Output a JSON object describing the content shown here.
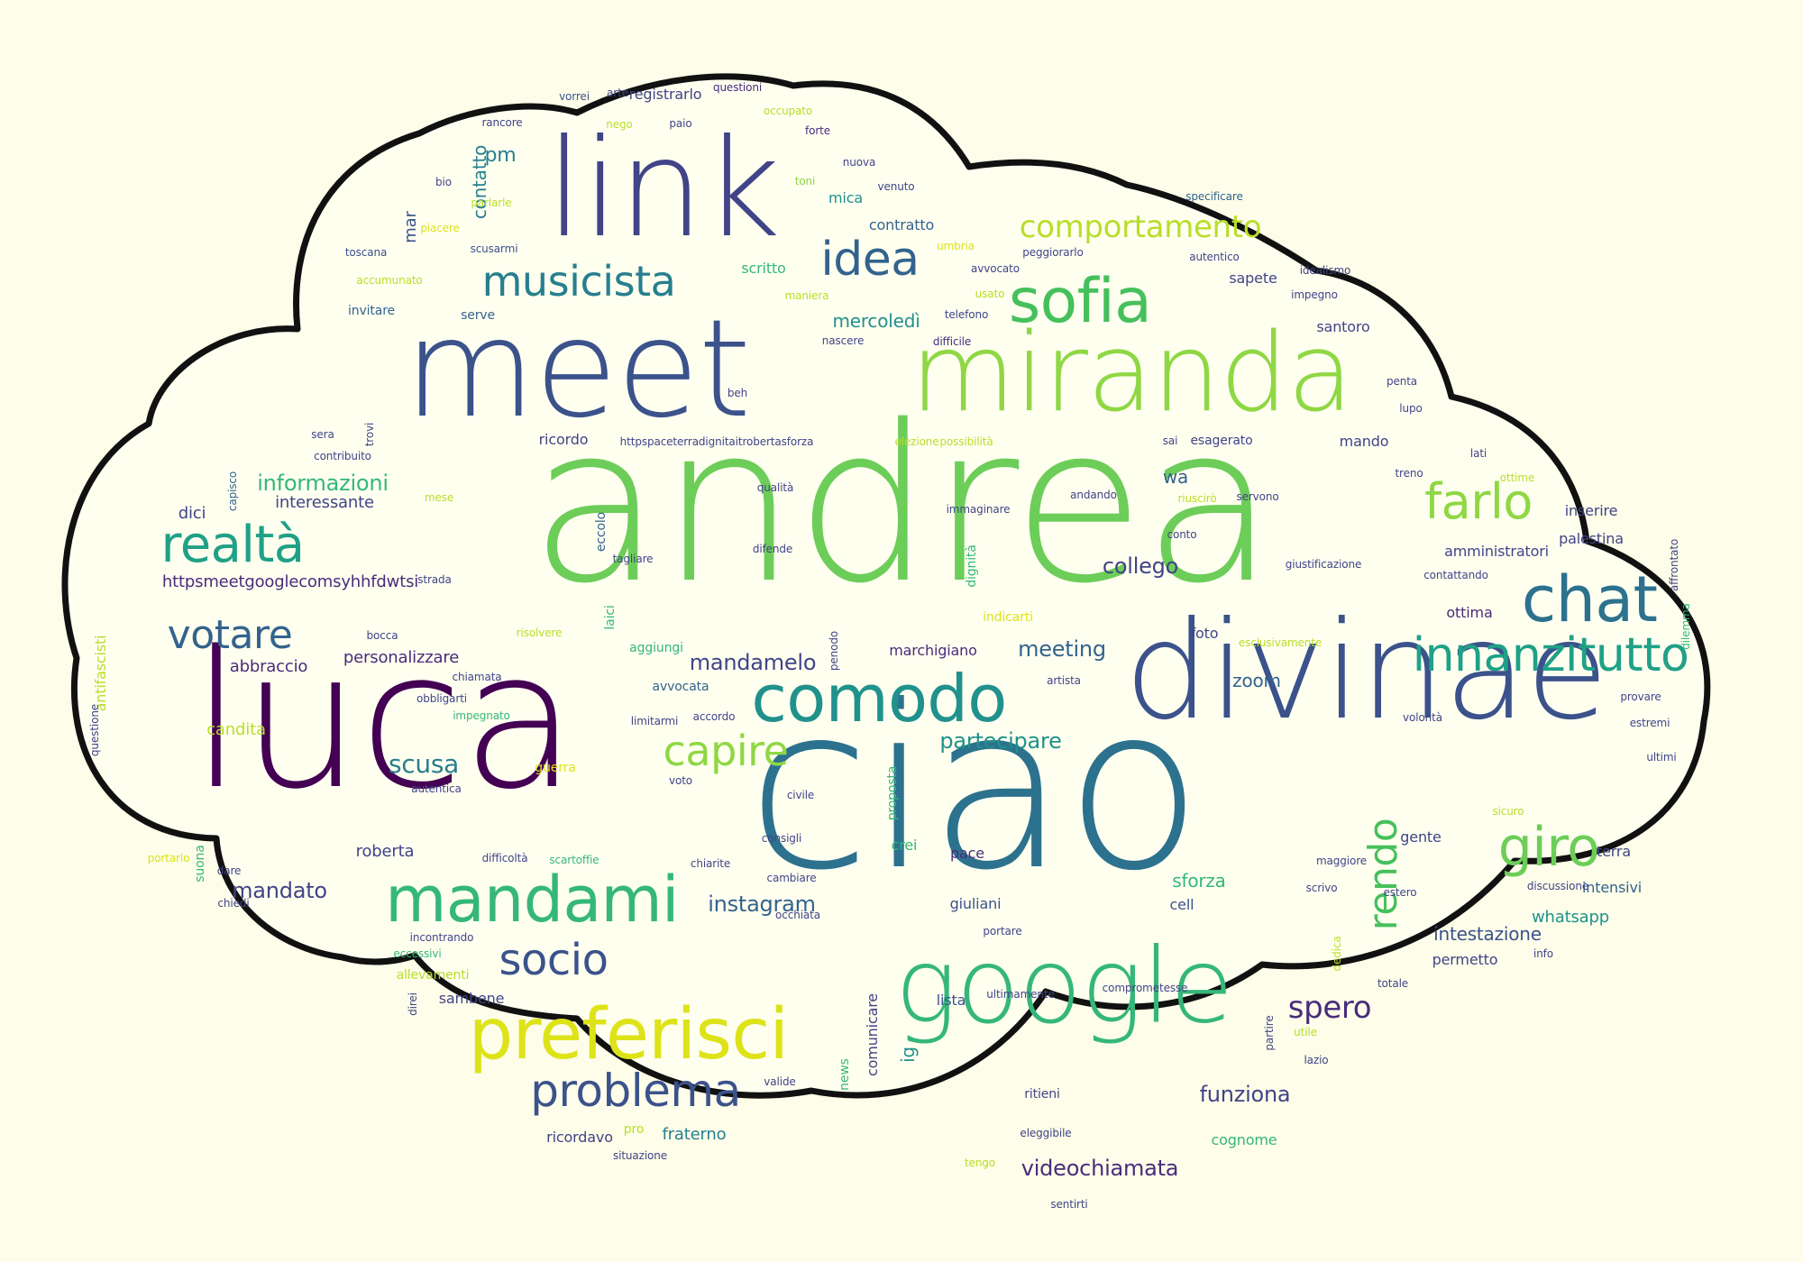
{
  "palette": {
    "background": "#fdfde9",
    "cloud_fill": "#fffff0",
    "cloud_outline": "#111111",
    "colors": [
      "#46c05c",
      "#6dcd59",
      "#8fd744",
      "#b8de29",
      "#dde318",
      "#fde725",
      "#35b779",
      "#1fa187",
      "#21918c",
      "#277f8e",
      "#2c728e",
      "#33638d",
      "#3b528b",
      "#414487",
      "#472d7b",
      "#440154"
    ]
  },
  "words": [
    {
      "text": "andrea",
      "color": "#6dcd59"
    },
    {
      "text": "ciao",
      "color": "#2c728e"
    },
    {
      "text": "luca",
      "color": "#440154"
    },
    {
      "text": "divinae",
      "color": "#3b528b"
    },
    {
      "text": "meet",
      "color": "#3b528b"
    },
    {
      "text": "link",
      "color": "#414487"
    },
    {
      "text": "miranda",
      "color": "#8fd744"
    },
    {
      "text": "google",
      "color": "#35b779"
    },
    {
      "text": "comodo",
      "color": "#21918c"
    },
    {
      "text": "preferisci",
      "color": "#dde318"
    },
    {
      "text": "mandami",
      "color": "#35b779"
    },
    {
      "text": "sofia",
      "color": "#46c05c"
    },
    {
      "text": "chat",
      "color": "#2c728e"
    },
    {
      "text": "innanzitutto",
      "color": "#1fa187"
    },
    {
      "text": "musicista",
      "color": "#277f8e"
    },
    {
      "text": "problema",
      "color": "#3b528b"
    },
    {
      "text": "farlo",
      "color": "#8fd744"
    },
    {
      "text": "realtà",
      "color": "#1fa187"
    },
    {
      "text": "giro",
      "color": "#6dcd59"
    },
    {
      "text": "socio",
      "color": "#3b528b"
    },
    {
      "text": "idea",
      "color": "#33638d"
    },
    {
      "text": "votare",
      "color": "#33638d"
    },
    {
      "text": "capire",
      "color": "#8fd744"
    },
    {
      "text": "rendo",
      "color": "#46c05c"
    },
    {
      "text": "comportamento",
      "color": "#b8de29"
    },
    {
      "text": "spero",
      "color": "#472d7b"
    },
    {
      "text": "scusa",
      "color": "#277f8e"
    },
    {
      "text": "partecipare",
      "color": "#21918c"
    },
    {
      "text": "meeting",
      "color": "#33638d"
    },
    {
      "text": "instagram",
      "color": "#33638d"
    },
    {
      "text": "mandamelo",
      "color": "#414487"
    },
    {
      "text": "funziona",
      "color": "#414487"
    },
    {
      "text": "videochiamata",
      "color": "#472d7b"
    },
    {
      "text": "mandato",
      "color": "#414487"
    },
    {
      "text": "informazioni",
      "color": "#35b779"
    },
    {
      "text": "collego",
      "color": "#414487"
    },
    {
      "text": "mercoledì",
      "color": "#21918c"
    },
    {
      "text": "zoom",
      "color": "#33638d"
    },
    {
      "text": "wa",
      "color": "#33638d"
    },
    {
      "text": "intestazione",
      "color": "#3b528b"
    },
    {
      "text": "whatsapp",
      "color": "#21918c"
    },
    {
      "text": "sforza",
      "color": "#35b779"
    },
    {
      "text": "personalizzare",
      "color": "#472d7b"
    },
    {
      "text": "https://meet.google.com/syh-hfdw-tsi",
      "display": "httpsmeetgooglecomsyhhfdwtsi",
      "color": "#472d7b"
    },
    {
      "text": "abbraccio",
      "color": "#472d7b"
    },
    {
      "text": "ricordavo",
      "color": "#414487"
    },
    {
      "text": "fraterno",
      "color": "#277f8e"
    },
    {
      "text": "interessante",
      "color": "#414487"
    },
    {
      "text": "dici",
      "color": "#414487"
    },
    {
      "text": "candita",
      "color": "#b8de29"
    },
    {
      "text": "roberta",
      "color": "#414487"
    },
    {
      "text": "pm",
      "color": "#277f8e"
    },
    {
      "text": "contatto",
      "color": "#277f8e"
    },
    {
      "text": "mar",
      "color": "#3b528b"
    },
    {
      "text": "registrarlo",
      "color": "#414487"
    },
    {
      "text": "ricordo",
      "color": "#414487"
    },
    {
      "text": "inserire",
      "color": "#414487"
    },
    {
      "text": "palestina",
      "color": "#414487"
    },
    {
      "text": "amministratori",
      "color": "#414487"
    },
    {
      "text": "ottima",
      "color": "#472d7b"
    },
    {
      "text": "gente",
      "color": "#414487"
    },
    {
      "text": "terra",
      "color": "#414487"
    },
    {
      "text": "intensivi",
      "color": "#33638d"
    },
    {
      "text": "permetto",
      "color": "#414487"
    },
    {
      "text": "cognome",
      "color": "#35b779"
    },
    {
      "text": "foto",
      "color": "#414487"
    },
    {
      "text": "pace",
      "color": "#472d7b"
    },
    {
      "text": "crei",
      "color": "#35b779"
    },
    {
      "text": "giuliani",
      "color": "#3b528b"
    },
    {
      "text": "lista",
      "color": "#3b528b"
    },
    {
      "text": "cell",
      "color": "#3b528b"
    },
    {
      "text": "socio",
      "color": "#3b528b"
    },
    {
      "text": "sambene",
      "color": "#414487"
    },
    {
      "text": "allevamenti",
      "color": "#b8de29"
    },
    {
      "text": "ig",
      "color": "#21918c"
    },
    {
      "text": "santoro",
      "color": "#414487"
    },
    {
      "text": "sapete",
      "color": "#414487"
    },
    {
      "text": "mando",
      "color": "#414487"
    },
    {
      "text": "marchigiano",
      "color": "#472d7b"
    },
    {
      "text": "aggiungi",
      "color": "#35b779"
    },
    {
      "text": "avvocata",
      "color": "#33638d"
    },
    {
      "text": "indicarti",
      "color": "#dde318"
    },
    {
      "text": "esagerato",
      "color": "#414487"
    },
    {
      "text": "sai",
      "color": "#414487"
    },
    {
      "text": "contratto",
      "color": "#33638d"
    },
    {
      "text": "scritto",
      "color": "#35b779"
    },
    {
      "text": "serve",
      "color": "#33638d"
    },
    {
      "text": "invitare",
      "color": "#33638d"
    },
    {
      "text": "mica",
      "color": "#21918c"
    },
    {
      "text": "questioni",
      "color": "#472d7b"
    },
    {
      "text": "arte",
      "color": "#414487"
    },
    {
      "text": "vorrei",
      "color": "#3b528b"
    },
    {
      "text": "suona",
      "color": "#35b779"
    },
    {
      "text": "scusarmi",
      "color": "#3b528b"
    },
    {
      "text": "toscana",
      "color": "#3b528b"
    },
    {
      "text": "accumunato",
      "color": "#b8de29"
    },
    {
      "text": "piacere",
      "color": "#dde318"
    },
    {
      "text": "bio",
      "color": "#414487"
    },
    {
      "text": "rancore",
      "color": "#414487"
    },
    {
      "text": "nego",
      "color": "#b8de29"
    },
    {
      "text": "paio",
      "color": "#414487"
    },
    {
      "text": "occupato",
      "color": "#b8de29"
    },
    {
      "text": "forte",
      "color": "#472d7b"
    },
    {
      "text": "nuova",
      "color": "#414487"
    },
    {
      "text": "toni",
      "color": "#8fd744"
    },
    {
      "text": "venuto",
      "color": "#414487"
    },
    {
      "text": "specificare",
      "color": "#33638d"
    },
    {
      "text": "autentico",
      "color": "#414487"
    },
    {
      "text": "idealismo",
      "color": "#414487"
    },
    {
      "text": "impegno",
      "color": "#414487"
    },
    {
      "text": "peggiorarlo",
      "color": "#414487"
    },
    {
      "text": "avvocato",
      "color": "#414487"
    },
    {
      "text": "umbria",
      "color": "#dde318"
    },
    {
      "text": "usato",
      "color": "#b8de29"
    },
    {
      "text": "maniera",
      "color": "#b8de29"
    },
    {
      "text": "telefono",
      "color": "#414487"
    },
    {
      "text": "difficile",
      "color": "#472d7b"
    },
    {
      "text": "nascere",
      "color": "#414487"
    },
    {
      "text": "beh",
      "color": "#414487"
    },
    {
      "text": "elezione",
      "color": "#b8de29"
    },
    {
      "text": "possibilità",
      "color": "#b8de29"
    },
    {
      "text": "https://paceterradignita.it/robertasforza",
      "display": "httpspaceterradignitaitrobertasforza",
      "color": "#414487"
    },
    {
      "text": "sera",
      "color": "#414487"
    },
    {
      "text": "trovi",
      "color": "#414487"
    },
    {
      "text": "contribuito",
      "color": "#414487"
    },
    {
      "text": "capisco",
      "color": "#33638d"
    },
    {
      "text": "mese",
      "color": "#b8de29"
    },
    {
      "text": "qualità",
      "color": "#414487"
    },
    {
      "text": "immaginare",
      "color": "#414487"
    },
    {
      "text": "andando",
      "color": "#414487"
    },
    {
      "text": "riuscirò",
      "color": "#b8de29"
    },
    {
      "text": "servono",
      "color": "#414487"
    },
    {
      "text": "conto",
      "color": "#414487"
    },
    {
      "text": "difende",
      "color": "#414487"
    },
    {
      "text": "tagliare",
      "color": "#414487"
    },
    {
      "text": "eccolo",
      "color": "#33638d"
    },
    {
      "text": "dignità",
      "color": "#35b779"
    },
    {
      "text": "strada",
      "color": "#414487"
    },
    {
      "text": "laici",
      "color": "#35b779"
    },
    {
      "text": "giustificazione",
      "color": "#414487"
    },
    {
      "text": "contattando",
      "color": "#414487"
    },
    {
      "text": "affrontato",
      "color": "#414487"
    },
    {
      "text": "dilemma",
      "color": "#35b779"
    },
    {
      "text": "penta",
      "color": "#414487"
    },
    {
      "text": "lupo",
      "color": "#414487"
    },
    {
      "text": "lati",
      "color": "#414487"
    },
    {
      "text": "treno",
      "color": "#414487"
    },
    {
      "text": "ottime",
      "color": "#b8de29"
    },
    {
      "text": "bocca",
      "color": "#414487"
    },
    {
      "text": "risolvere",
      "color": "#b8de29"
    },
    {
      "text": "antifascisti",
      "color": "#b8de29"
    },
    {
      "text": "chiamata",
      "color": "#414487"
    },
    {
      "text": "obbligarti",
      "color": "#414487"
    },
    {
      "text": "impegnato",
      "color": "#35b779"
    },
    {
      "text": "questione",
      "color": "#414487"
    },
    {
      "text": "autentica",
      "color": "#414487"
    },
    {
      "text": "guerra",
      "color": "#dde318"
    },
    {
      "text": "limitarmi",
      "color": "#414487"
    },
    {
      "text": "accordo",
      "color": "#414487"
    },
    {
      "text": "voto",
      "color": "#414487"
    },
    {
      "text": "proposta",
      "color": "#35b779"
    },
    {
      "text": "civile",
      "color": "#414487"
    },
    {
      "text": "consigli",
      "color": "#414487"
    },
    {
      "text": "chiarite",
      "color": "#414487"
    },
    {
      "text": "cambiare",
      "color": "#414487"
    },
    {
      "text": "occhiata",
      "color": "#414487"
    },
    {
      "text": "scartoffie",
      "color": "#35b779"
    },
    {
      "text": "difficoltà",
      "color": "#414487"
    },
    {
      "text": "dare",
      "color": "#414487"
    },
    {
      "text": "portarlo",
      "color": "#dde318"
    },
    {
      "text": "chiedi",
      "color": "#414487"
    },
    {
      "text": "incontrando",
      "color": "#414487"
    },
    {
      "text": "eccessivi",
      "color": "#35b779"
    },
    {
      "text": "direi",
      "color": "#414487"
    },
    {
      "text": "pro",
      "color": "#b8de29"
    },
    {
      "text": "situazione",
      "color": "#414487"
    },
    {
      "text": "news",
      "color": "#35b779"
    },
    {
      "text": "comunicare",
      "color": "#414487"
    },
    {
      "text": "valide",
      "color": "#414487"
    },
    {
      "text": "ritieni",
      "color": "#414487"
    },
    {
      "text": "eleggibile",
      "color": "#414487"
    },
    {
      "text": "tengo",
      "color": "#b8de29"
    },
    {
      "text": "sentirti",
      "color": "#414487"
    },
    {
      "text": "ultimamente",
      "color": "#414487"
    },
    {
      "text": "comprometesse",
      "color": "#414487"
    },
    {
      "text": "portare",
      "color": "#414487"
    },
    {
      "text": "totale",
      "color": "#414487"
    },
    {
      "text": "partire",
      "color": "#414487"
    },
    {
      "text": "utile",
      "color": "#b8de29"
    },
    {
      "text": "lazio",
      "color": "#414487"
    },
    {
      "text": "dedica",
      "color": "#b8de29"
    },
    {
      "text": "scrivo",
      "color": "#414487"
    },
    {
      "text": "estero",
      "color": "#414487"
    },
    {
      "text": "info",
      "color": "#414487"
    },
    {
      "text": "discussione",
      "color": "#414487"
    },
    {
      "text": "maggiore",
      "color": "#414487"
    },
    {
      "text": "sicuro",
      "color": "#b8de29"
    },
    {
      "text": "volontà",
      "color": "#414487"
    },
    {
      "text": "provare",
      "color": "#414487"
    },
    {
      "text": "estremi",
      "color": "#414487"
    },
    {
      "text": "ultimi",
      "color": "#414487"
    },
    {
      "text": "esclusivamente",
      "color": "#b8de29"
    },
    {
      "text": "artista",
      "color": "#414487"
    },
    {
      "text": "penodo",
      "color": "#414487"
    },
    {
      "text": "parlarle",
      "color": "#b8de29"
    }
  ]
}
